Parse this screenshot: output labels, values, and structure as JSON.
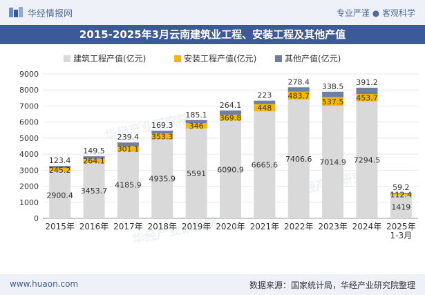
{
  "header": {
    "site_name": "华经情报网",
    "slogan": "专业严谨 ● 客观科学",
    "logo_icon": "huajing-logo-icon"
  },
  "title": "2015-2025年3月云南建筑业工程、安装工程及其他产值",
  "footer": {
    "url": "www.huaon.com",
    "source": "数据来源：国家统计局，华经产业研究院整理"
  },
  "watermark": [
    "华经产业研究院",
    "www.huaon.com"
  ],
  "colors": {
    "construction": "#d9d9d9",
    "installation": "#f5b800",
    "other": "#6e7fa6"
  },
  "chart_data": {
    "type": "bar",
    "stacked": true,
    "categories": [
      "2015年",
      "2016年",
      "2017年",
      "2018年",
      "2019年",
      "2020年",
      "2021年",
      "2022年",
      "2023年",
      "2024年",
      "2025年\n1-3月"
    ],
    "series": [
      {
        "name": "建筑工程产值(亿元)",
        "values": [
          2900.4,
          3453.7,
          4185.9,
          4935.9,
          5591,
          6090.9,
          6665.6,
          7406.6,
          7014.9,
          7294.5,
          1419
        ]
      },
      {
        "name": "安装工程产值(亿元)",
        "values": [
          245.2,
          264.1,
          301.1,
          353.3,
          346,
          369.8,
          448,
          483.7,
          537.5,
          453.7,
          112.4
        ]
      },
      {
        "name": "其他产值(亿元)",
        "values": [
          123.4,
          149.5,
          239.4,
          169.3,
          185.1,
          264.1,
          223,
          278.4,
          338.5,
          391.2,
          59.2
        ]
      }
    ],
    "yticks": [
      0,
      1000,
      2000,
      3000,
      4000,
      5000,
      6000,
      7000,
      8000,
      9000
    ],
    "ylim": [
      0,
      9000
    ],
    "legend_position": "top"
  }
}
